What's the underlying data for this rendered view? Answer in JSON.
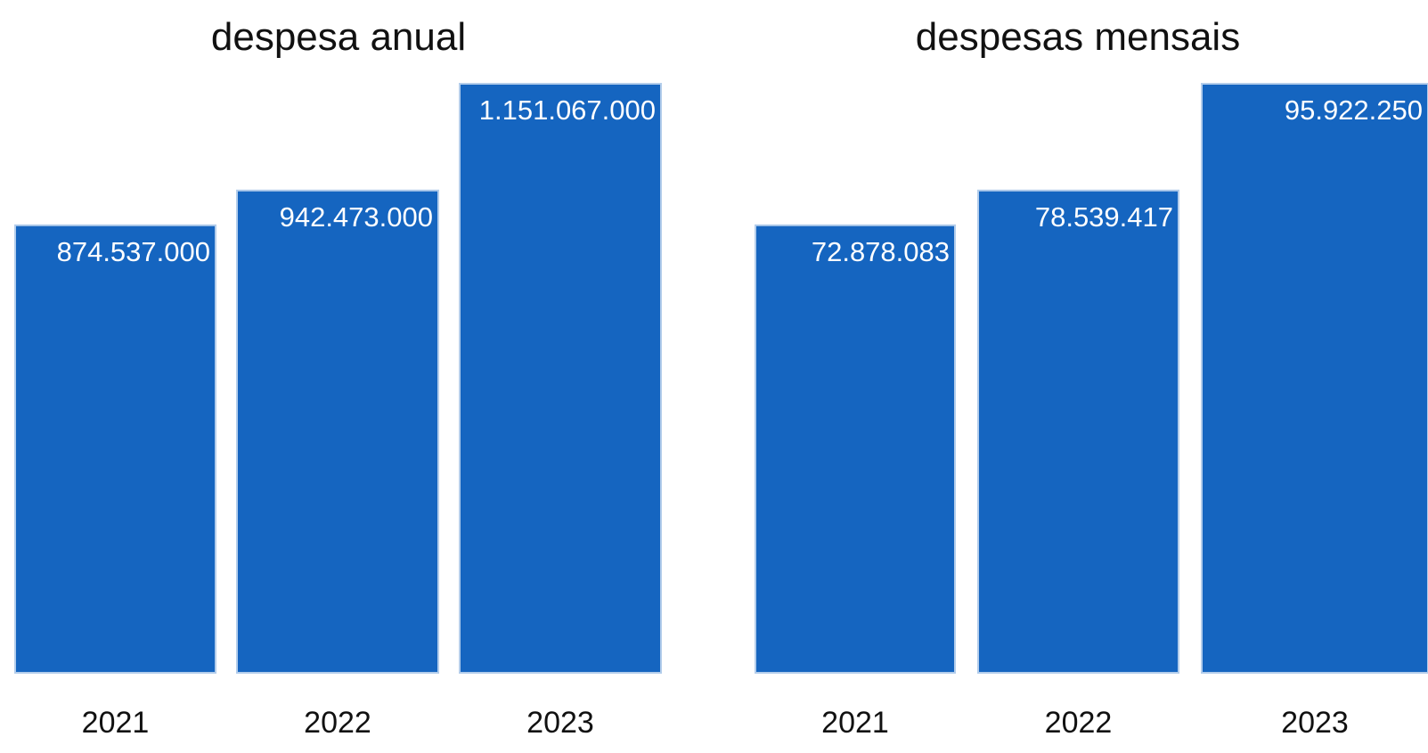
{
  "colors": {
    "bar": "#1565C0",
    "bar_edge": "#B3CDEB",
    "background": "#ffffff"
  },
  "chart_data": [
    {
      "type": "bar",
      "title": "despesa anual",
      "xlabel": "",
      "ylabel": "",
      "categories": [
        "2021",
        "2022",
        "2023"
      ],
      "values": [
        874537000,
        942473000,
        1151067000
      ],
      "value_labels": [
        "874.537.000",
        "942.473.000",
        "1.151.067.000"
      ],
      "ylim": [
        0,
        1151067000
      ],
      "grid": false,
      "legend": "none"
    },
    {
      "type": "bar",
      "title": "despesas mensais",
      "xlabel": "",
      "ylabel": "",
      "categories": [
        "2021",
        "2022",
        "2023"
      ],
      "values": [
        72878083,
        78539417,
        95922250
      ],
      "value_labels": [
        "72.878.083",
        "78.539.417",
        "95.922.250"
      ],
      "ylim": [
        0,
        95922250
      ],
      "grid": false,
      "legend": "none"
    }
  ]
}
